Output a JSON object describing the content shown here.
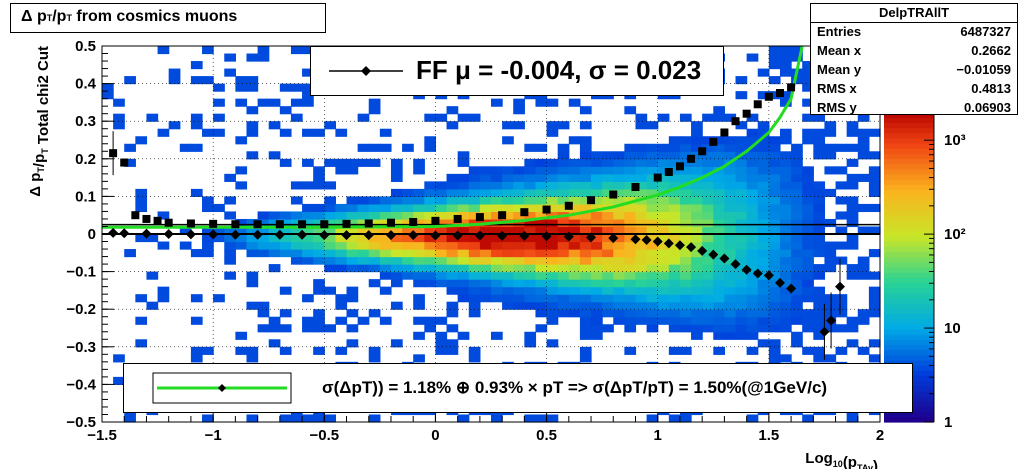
{
  "title": {
    "main": "Δ p",
    "sub1": "T",
    "mid": "/p",
    "sub2": "T",
    "tail": " from cosmics muons"
  },
  "ylabel": {
    "prefix": "Δ p",
    "sub1": "T",
    "mid": "/p",
    "sub2": "T",
    "tail": "   Total chi2 Cut"
  },
  "xlabel": {
    "prefix": "Log",
    "sub1": "10",
    "mid": "(p",
    "sub2": "TAv",
    "tail": ")"
  },
  "stats": {
    "name": "DelpTRAllT",
    "rows": [
      {
        "label": "Entries",
        "value": "6487327"
      },
      {
        "label": "Mean x",
        "value": "0.2662"
      },
      {
        "label": "Mean y",
        "value": "−0.01059"
      },
      {
        "label": "RMS x",
        "value": "0.4813"
      },
      {
        "label": "RMS y",
        "value": "0.06903"
      }
    ]
  },
  "legend_fit": "FF μ = -0.004, σ =   0.023",
  "legend_res": "σ(ΔpT)) =  1.18% ⊕  0.93% × pT => σ(ΔpT/pT) =  1.50%(@1GeV/c)",
  "chart_data": {
    "type": "heatmap",
    "xlim": [
      -1.5,
      2
    ],
    "ylim": [
      -0.5,
      0.5
    ],
    "x_ticks": [
      "−1.5",
      "−1",
      "−0.5",
      "0",
      "0.5",
      "1",
      "1.5",
      "2"
    ],
    "y_ticks": [
      "−0.5",
      "−0.4",
      "−0.3",
      "−0.2",
      "−0.1",
      "0",
      "0.1",
      "0.2",
      "0.3",
      "0.4",
      "0.5"
    ],
    "z_scale": "log",
    "z_ticks": [
      "1",
      "10",
      "10²",
      "10³"
    ],
    "grid": true,
    "sigma_points": {
      "x": [
        -1.45,
        -1.4,
        -1.35,
        -1.3,
        -1.25,
        -1.2,
        -1.1,
        -1.0,
        -0.9,
        -0.8,
        -0.7,
        -0.6,
        -0.5,
        -0.4,
        -0.3,
        -0.2,
        -0.1,
        0.0,
        0.1,
        0.2,
        0.3,
        0.4,
        0.5,
        0.6,
        0.7,
        0.8,
        0.9,
        1.0,
        1.05,
        1.1,
        1.15,
        1.2,
        1.25,
        1.3,
        1.35,
        1.4,
        1.45,
        1.5,
        1.55,
        1.6
      ],
      "y": [
        0.215,
        0.19,
        0.05,
        0.04,
        0.035,
        0.03,
        0.028,
        0.027,
        0.026,
        0.026,
        0.026,
        0.026,
        0.026,
        0.027,
        0.028,
        0.03,
        0.032,
        0.035,
        0.04,
        0.045,
        0.05,
        0.058,
        0.065,
        0.075,
        0.09,
        0.105,
        0.125,
        0.15,
        0.165,
        0.18,
        0.2,
        0.22,
        0.245,
        0.27,
        0.3,
        0.32,
        0.345,
        0.365,
        0.375,
        0.39
      ]
    },
    "mean_points": {
      "x": [
        -1.45,
        -1.4,
        -1.3,
        -1.2,
        -1.1,
        -1.0,
        -0.9,
        -0.8,
        -0.7,
        -0.6,
        -0.5,
        -0.4,
        -0.3,
        -0.2,
        -0.1,
        0.0,
        0.1,
        0.2,
        0.3,
        0.4,
        0.5,
        0.6,
        0.7,
        0.8,
        0.9,
        0.95,
        1.0,
        1.05,
        1.1,
        1.15,
        1.2,
        1.25,
        1.3,
        1.35,
        1.4,
        1.45,
        1.5,
        1.55,
        1.6,
        1.75,
        1.78,
        1.82
      ],
      "y": [
        0.003,
        0.002,
        0.001,
        0.0,
        -0.001,
        -0.001,
        -0.002,
        -0.002,
        -0.002,
        -0.002,
        -0.003,
        -0.003,
        -0.003,
        -0.003,
        -0.003,
        -0.004,
        -0.004,
        -0.004,
        -0.005,
        -0.005,
        -0.006,
        -0.007,
        -0.009,
        -0.011,
        -0.014,
        -0.016,
        -0.02,
        -0.025,
        -0.03,
        -0.035,
        -0.045,
        -0.055,
        -0.065,
        -0.08,
        -0.095,
        -0.105,
        -0.11,
        -0.13,
        -0.145,
        -0.26,
        -0.23,
        -0.14
      ]
    },
    "fit_curve": {
      "x": [
        -1.5,
        -1.0,
        -0.5,
        0.0,
        0.2,
        0.4,
        0.6,
        0.8,
        1.0,
        1.1,
        1.2,
        1.3,
        1.4,
        1.5,
        1.55,
        1.6,
        1.65
      ],
      "y": [
        0.018,
        0.018,
        0.018,
        0.02,
        0.026,
        0.036,
        0.05,
        0.072,
        0.104,
        0.125,
        0.15,
        0.18,
        0.22,
        0.27,
        0.31,
        0.36,
        0.5
      ]
    }
  }
}
